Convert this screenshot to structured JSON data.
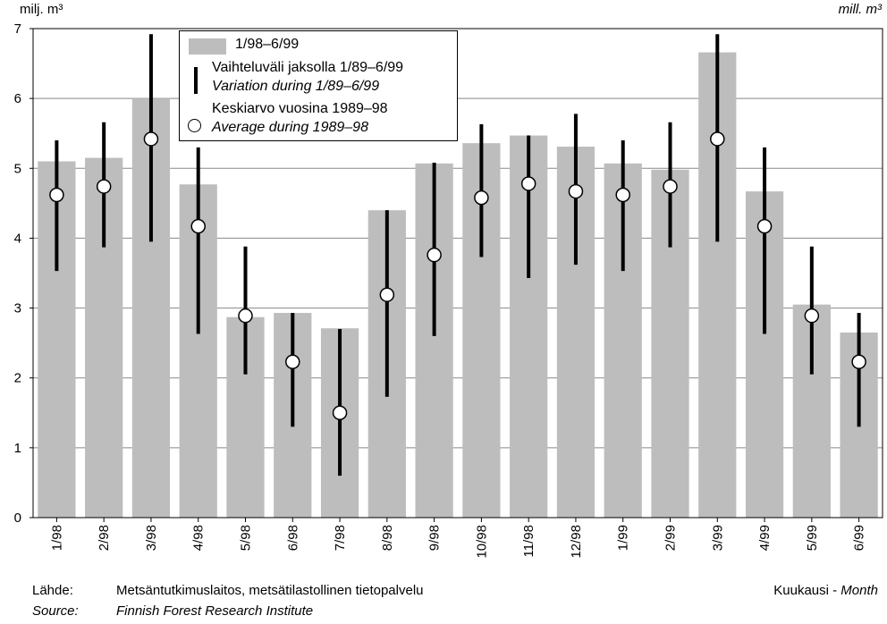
{
  "units": {
    "left": "milj. m³",
    "right": "mill. m³"
  },
  "legend": {
    "bars": "1/98–6/99",
    "range_fi": "Vaihteluväli jaksolla 1/89–6/99",
    "range_en": "Variation during 1/89–6/99",
    "mean_fi": "Keskiarvo vuosina 1989–98",
    "mean_en": "Average during 1989–98"
  },
  "xaxis_label_fi": "Kuukausi -",
  "xaxis_label_en": "Month",
  "source": {
    "label_fi": "Lähde:",
    "text_fi": "Metsäntutkimuslaitos, metsätilastollinen tietopalvelu",
    "label_en": "Source:",
    "text_en": "Finnish Forest Research Institute"
  },
  "colors": {
    "bar": "#bdbdbd",
    "grid": "#888888",
    "line": "#000000",
    "dot_fill": "#ffffff"
  },
  "chart_data": {
    "type": "bar",
    "categories": [
      "1/98",
      "2/98",
      "3/98",
      "4/98",
      "5/98",
      "6/98",
      "7/98",
      "8/98",
      "9/98",
      "10/98",
      "11/98",
      "12/98",
      "1/99",
      "2/99",
      "3/99",
      "4/99",
      "5/99",
      "6/99"
    ],
    "ylim": [
      0,
      7
    ],
    "yticks": [
      0,
      1,
      2,
      3,
      4,
      5,
      6,
      7
    ],
    "grid": true,
    "legend_position": "top-center",
    "series": [
      {
        "name": "1/98–6/99",
        "kind": "bar",
        "values": [
          5.1,
          5.15,
          6.0,
          4.77,
          2.87,
          2.93,
          2.71,
          4.4,
          5.07,
          5.36,
          5.47,
          5.31,
          5.07,
          4.98,
          6.66,
          4.67,
          3.05,
          2.65
        ]
      },
      {
        "name": "Vaihteluväli jaksolla 1/89–6/99",
        "kind": "range",
        "low": [
          3.53,
          3.87,
          3.95,
          2.63,
          2.05,
          1.3,
          0.6,
          1.73,
          2.6,
          3.73,
          3.43,
          3.62,
          3.53,
          3.87,
          3.95,
          2.63,
          2.05,
          1.3
        ],
        "high": [
          5.4,
          5.66,
          6.92,
          5.3,
          3.88,
          2.93,
          2.7,
          4.4,
          5.08,
          5.63,
          5.47,
          5.78,
          5.4,
          5.66,
          6.92,
          5.3,
          3.88,
          2.93
        ]
      },
      {
        "name": "Keskiarvo vuosina 1989–98",
        "kind": "point",
        "values": [
          4.62,
          4.74,
          5.42,
          4.17,
          2.89,
          2.23,
          1.5,
          3.19,
          3.76,
          4.58,
          4.78,
          4.67,
          4.62,
          4.74,
          5.42,
          4.17,
          2.89,
          2.23
        ]
      }
    ]
  }
}
